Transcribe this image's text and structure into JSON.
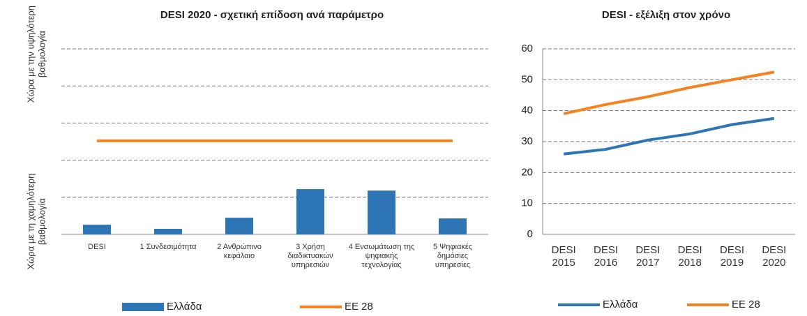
{
  "chart_data": [
    {
      "type": "bar",
      "title": "DESI 2020 - σχετική επίδοση ανά παράμετρο",
      "y_label_top": "Χώρα με την υψηλότερη βαθμολογία",
      "y_label_bottom": "Χώρα με τη χαμηλότερη βαθμολογία",
      "categories": [
        "DESI",
        "1 Συνδεσιμότητα",
        "2 Ανθρώπινο κεφάλαιο",
        "3 Χρήση διαδικτυακών υπηρεσιών",
        "4 Ενσωμάτωση της ψηφιακής τεχνολογίας",
        "5 Ψηφιακές δημόσιες υπηρεσίες"
      ],
      "series": [
        {
          "name": "Ελλάδα",
          "color": "#2e75b6",
          "type": "bar",
          "values": [
            0.26,
            0.15,
            0.45,
            1.22,
            1.18,
            0.43
          ]
        },
        {
          "name": "ΕΕ 28",
          "color": "#f58220",
          "type": "line",
          "values": [
            2.52,
            2.52,
            2.52,
            2.52,
            2.52,
            2.52
          ]
        }
      ],
      "ylim": [
        0,
        5
      ],
      "yticks": [
        0,
        1,
        2,
        3,
        4,
        5
      ],
      "grid": true
    },
    {
      "type": "line",
      "title": "DESI - εξέλιξη στον χρόνο",
      "categories": [
        "DESI 2015",
        "DESI 2016",
        "DESI 2017",
        "DESI 2018",
        "DESI 2019",
        "DESI 2020"
      ],
      "series": [
        {
          "name": "Ελλάδα",
          "color": "#2e75b6",
          "values": [
            26,
            27.5,
            30.5,
            32.5,
            35.5,
            37.5
          ]
        },
        {
          "name": "ΕΕ 28",
          "color": "#f58220",
          "values": [
            39,
            42,
            44.5,
            47.5,
            50,
            52.5
          ]
        }
      ],
      "ylim": [
        0,
        60
      ],
      "yticks": [
        0,
        10,
        20,
        30,
        40,
        50,
        60
      ],
      "grid": true
    }
  ]
}
